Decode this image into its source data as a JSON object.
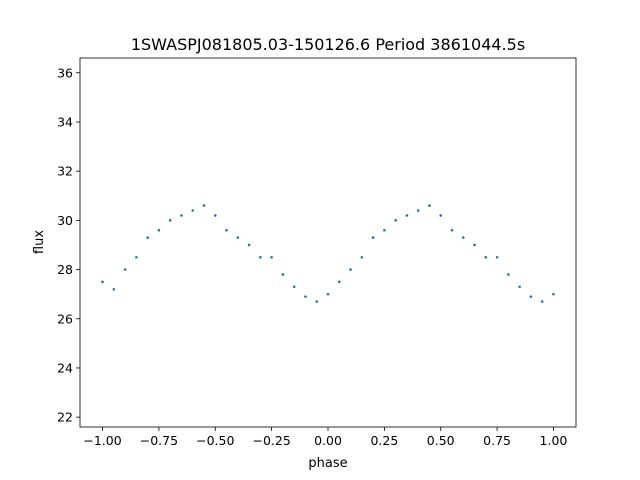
{
  "chart_data": {
    "type": "scatter",
    "title": "1SWASPJ081805.03-150126.6 Period 3861044.5s",
    "xlabel": "phase",
    "ylabel": "flux",
    "xlim": [
      -1.1,
      1.1
    ],
    "ylim": [
      21.6,
      36.6
    ],
    "xticks": [
      -1.0,
      -0.75,
      -0.5,
      -0.25,
      0.0,
      0.25,
      0.5,
      0.75,
      1.0
    ],
    "xtick_labels": [
      "−1.00",
      "−0.75",
      "−0.50",
      "−0.25",
      "0.00",
      "0.25",
      "0.50",
      "0.75",
      "1.00"
    ],
    "yticks": [
      22,
      24,
      26,
      28,
      30,
      32,
      34,
      36
    ],
    "ytick_labels": [
      "22",
      "24",
      "26",
      "28",
      "30",
      "32",
      "34",
      "36"
    ],
    "grid": false,
    "marker_color": "#1f77b4",
    "series": [
      {
        "x": [
          -1.0,
          -0.95,
          -0.9,
          -0.85,
          -0.8,
          -0.75,
          -0.7,
          -0.65,
          -0.6,
          -0.55,
          -0.5,
          -0.45,
          -0.4,
          -0.35,
          -0.3,
          -0.25,
          -0.2,
          -0.15,
          -0.1,
          -0.05,
          0.0,
          0.05,
          0.1,
          0.15,
          0.2,
          0.25,
          0.3,
          0.35,
          0.4,
          0.45,
          0.5,
          0.55,
          0.6,
          0.65,
          0.7,
          0.75,
          0.8,
          0.85,
          0.9,
          0.95,
          1.0
        ],
        "y": [
          27.5,
          27.2,
          28.0,
          28.5,
          29.3,
          29.6,
          30.0,
          30.2,
          30.4,
          30.6,
          30.2,
          29.6,
          29.3,
          29.0,
          28.5,
          28.5,
          27.8,
          27.3,
          26.9,
          26.7,
          27.0,
          27.5,
          28.0,
          28.5,
          29.3,
          29.6,
          30.0,
          30.2,
          30.4,
          30.6,
          30.2,
          29.6,
          29.3,
          29.0,
          28.5,
          28.5,
          27.8,
          27.3,
          26.9,
          26.7,
          27.0
        ]
      }
    ]
  }
}
